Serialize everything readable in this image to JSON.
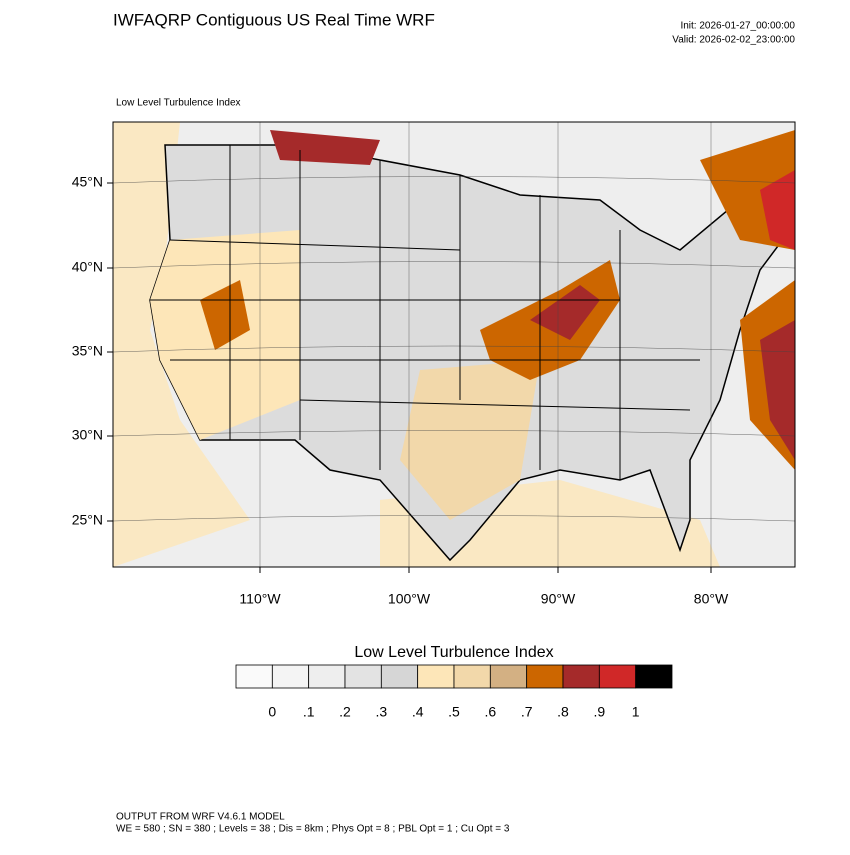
{
  "header": {
    "title": "IWFAQRP Contiguous US Real Time WRF",
    "init": "Init: 2026-01-27_00:00:00",
    "valid": "Valid: 2026-02-02_23:00:00"
  },
  "map": {
    "label": "Low Level Turbulence Index",
    "lat_labels": [
      "45°N",
      "40°N",
      "35°N",
      "30°N",
      "25°N"
    ],
    "lon_labels": [
      "110°W",
      "100°W",
      "90°W",
      "80°W"
    ]
  },
  "colorbar": {
    "title": "Low Level Turbulence Index",
    "labels": [
      "0",
      ".1",
      ".2",
      ".3",
      ".4",
      ".5",
      ".6",
      ".7",
      ".8",
      ".9",
      "1"
    ],
    "colors": [
      "#fafafa",
      "#f4f4f4",
      "#eeeeee",
      "#e3e3e3",
      "#d6d6d6",
      "#fde6b8",
      "#f2d8aa",
      "#d3b083",
      "#cc6600",
      "#a52a2a",
      "#d02828",
      "#000000"
    ]
  },
  "footer": {
    "line1": "OUTPUT FROM WRF V4.6.1 MODEL",
    "line2": "WE = 580 ; SN = 380 ; Levels = 38 ; Dis = 8km ; Phys Opt = 8 ; PBL Opt = 1 ; Cu Opt = 3"
  }
}
